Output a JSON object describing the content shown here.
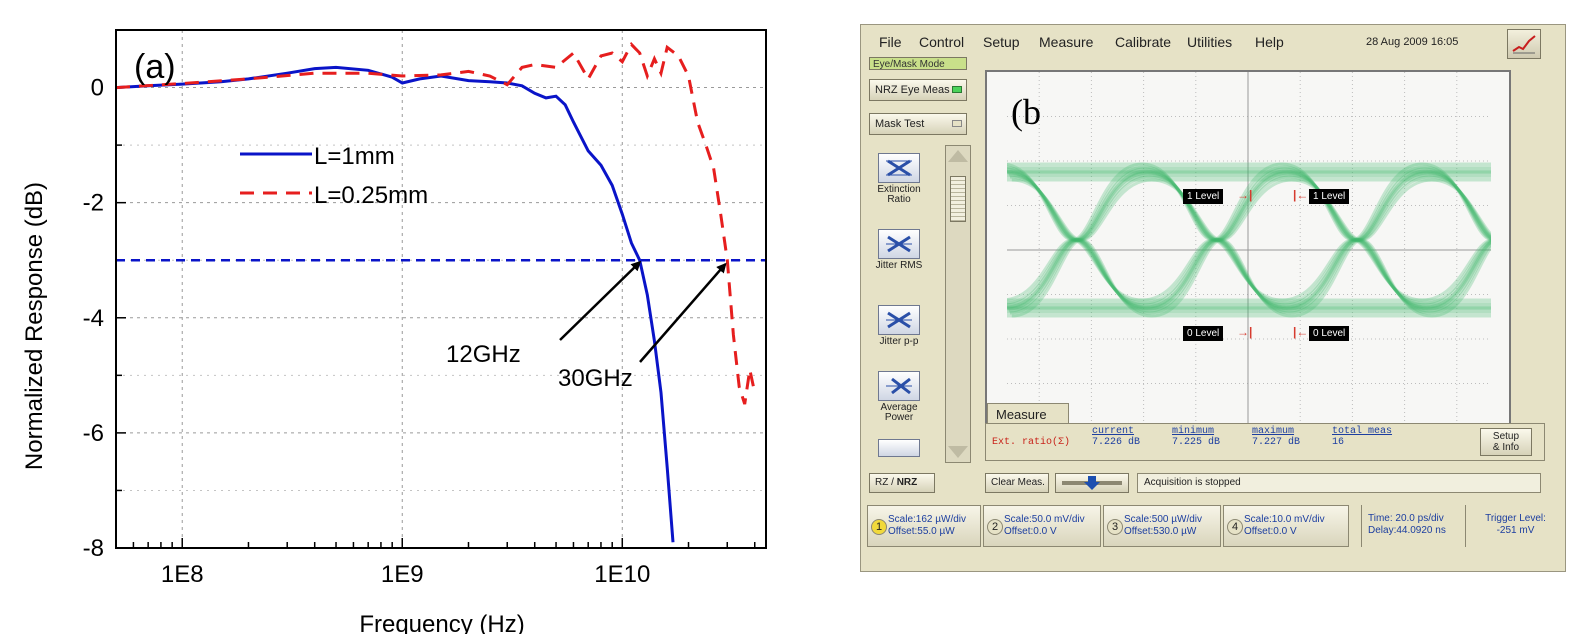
{
  "chart_data": [
    {
      "type": "line",
      "panel_label": "(a)",
      "xlabel": "Frequency (Hz)",
      "ylabel": "Normalized Response (dB)",
      "x_scale": "log",
      "xlim": [
        50000000,
        45000000000
      ],
      "ylim": [
        -8,
        1
      ],
      "x_ticks": [
        100000000,
        1000000000,
        10000000000
      ],
      "x_tick_labels": [
        "1E8",
        "1E9",
        "1E10"
      ],
      "y_ticks": [
        0,
        -2,
        -4,
        -6,
        -8
      ],
      "y_tick_labels": [
        "0",
        "-2",
        "-4",
        "-6",
        "-8"
      ],
      "grid": true,
      "legend": "center-left",
      "reference_line": {
        "y": -3,
        "style": "dashed",
        "color": "#0a14c8"
      },
      "series": [
        {
          "name": "L=1mm",
          "color": "#0a14c8",
          "style": "solid",
          "x": [
            50000000,
            70000000,
            100000000,
            150000000,
            200000000,
            300000000,
            400000000,
            500000000,
            700000000,
            900000000,
            1000000000,
            1200000000,
            1500000000,
            2000000000,
            2500000000,
            3000000000,
            3500000000,
            4000000000,
            4500000000,
            5000000000,
            5500000000,
            6000000000,
            7000000000,
            8000000000,
            9000000000,
            10000000000,
            11000000000,
            12000000000,
            13000000000,
            14000000000,
            15000000000,
            16000000000,
            17000000000
          ],
          "y": [
            0,
            0.03,
            0.06,
            0.1,
            0.15,
            0.25,
            0.33,
            0.35,
            0.3,
            0.18,
            0.08,
            0.15,
            0.2,
            0.12,
            0.1,
            0.08,
            0.03,
            -0.1,
            -0.18,
            -0.15,
            -0.3,
            -0.6,
            -1.1,
            -1.35,
            -1.7,
            -2.2,
            -2.7,
            -3.0,
            -3.6,
            -4.4,
            -5.3,
            -6.6,
            -7.9
          ]
        },
        {
          "name": "L=0.25mm",
          "color": "#e61e1e",
          "style": "dashed",
          "x": [
            50000000,
            100000000,
            200000000,
            400000000,
            700000000,
            1000000000,
            1500000000,
            2000000000,
            2500000000,
            3000000000,
            3500000000,
            4000000000,
            5000000000,
            6000000000,
            7000000000,
            8000000000,
            9000000000,
            10000000000,
            11000000000,
            12000000000,
            13000000000,
            14000000000,
            15000000000,
            16000000000,
            18000000000,
            20000000000,
            22000000000,
            24000000000,
            26000000000,
            28000000000,
            30000000000,
            32000000000,
            34000000000,
            36000000000,
            38000000000,
            40000000000
          ],
          "y": [
            0,
            0.07,
            0.15,
            0.25,
            0.25,
            0.2,
            0.22,
            0.28,
            0.2,
            0.05,
            0.35,
            0.4,
            0.35,
            0.6,
            0.15,
            0.55,
            0.6,
            0.45,
            0.75,
            0.6,
            0.2,
            0.5,
            0.25,
            0.7,
            0.55,
            0.2,
            -0.6,
            -1.0,
            -1.4,
            -2.2,
            -3.0,
            -4.3,
            -5.2,
            -5.5,
            -4.9,
            -5.3
          ]
        }
      ],
      "annotations": [
        {
          "text": "12GHz",
          "target_x": 12000000000,
          "target_y": -3
        },
        {
          "text": "30GHz",
          "target_x": 30000000000,
          "target_y": -3
        }
      ]
    }
  ],
  "scope": {
    "menu": [
      "File",
      "Control",
      "Setup",
      "Measure",
      "Calibrate",
      "Utilities",
      "Help"
    ],
    "datetime": "28 Aug 2009  16:05",
    "mode_label": "Eye/Mask Mode",
    "buttons": {
      "nrz_eye": "NRZ Eye Meas",
      "mask_test": "Mask Test",
      "rz_nrz_rz": "RZ",
      "rz_nrz_sep": "/",
      "rz_nrz_nrz": "NRZ",
      "clear": "Clear Meas.",
      "setup_info_1": "Setup",
      "setup_info_2": "& Info"
    },
    "side_buttons": [
      {
        "line1": "Extinction",
        "line2": "Ratio",
        "icon_text": "1/0"
      },
      {
        "line1": "Jitter RMS",
        "line2": ""
      },
      {
        "line1": "Jitter p-p",
        "line2": ""
      },
      {
        "line1": "Average",
        "line2": "Power"
      }
    ],
    "panel_label": "(b",
    "levels": {
      "one": "1 Level",
      "zero": "0 Level"
    },
    "measure": {
      "tab": "Measure",
      "name": "Ext. ratio(Σ)",
      "headers": [
        "current",
        "minimum",
        "maximum",
        "total meas"
      ],
      "values": [
        "7.226 dB",
        "7.225 dB",
        "7.227 dB",
        "16"
      ]
    },
    "status": "Acquisition is stopped",
    "channels": [
      {
        "num": "1",
        "scale": "Scale:162 µW/div",
        "offset": "Offset:55.0 µW"
      },
      {
        "num": "2",
        "scale": "Scale:50.0 mV/div",
        "offset": "Offset:0.0 V"
      },
      {
        "num": "3",
        "scale": "Scale:500 µW/div",
        "offset": "Offset:530.0 µW"
      },
      {
        "num": "4",
        "scale": "Scale:10.0 mV/div",
        "offset": "Offset:0.0 V"
      }
    ],
    "timebase": {
      "time": "Time: 20.0 ps/div",
      "delay": "Delay:44.0920 ns"
    },
    "trigger": {
      "label": "Trigger Level:",
      "value": "-251 mV"
    },
    "colors": {
      "trace": "#3fb86a",
      "marker": "#d63b2f",
      "panel": "#e6e2c6"
    }
  }
}
